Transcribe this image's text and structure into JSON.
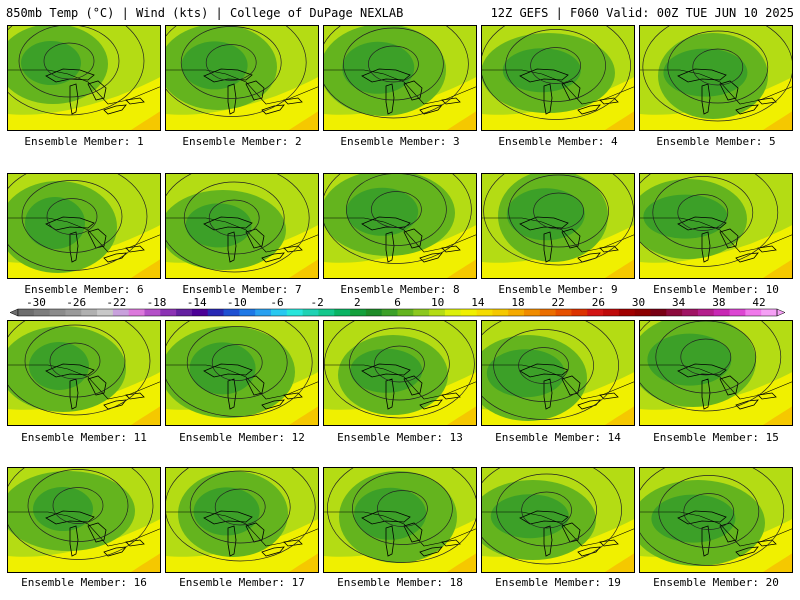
{
  "header": {
    "left": "850mb Temp (°C) | Wind (kts) | College of DuPage NEXLAB",
    "right": "12Z GEFS | F060 Valid: 00Z TUE JUN 10 2025"
  },
  "members": [
    "Ensemble Member: 1",
    "Ensemble Member: 2",
    "Ensemble Member: 3",
    "Ensemble Member: 4",
    "Ensemble Member: 5",
    "Ensemble Member: 6",
    "Ensemble Member: 7",
    "Ensemble Member: 8",
    "Ensemble Member: 9",
    "Ensemble Member: 10",
    "Ensemble Member: 11",
    "Ensemble Member: 12",
    "Ensemble Member: 13",
    "Ensemble Member: 14",
    "Ensemble Member: 15",
    "Ensemble Member: 16",
    "Ensemble Member: 17",
    "Ensemble Member: 18",
    "Ensemble Member: 19",
    "Ensemble Member: 20"
  ],
  "colorbar": {
    "tick_labels": [
      "-30",
      "-26",
      "-22",
      "-18",
      "-14",
      "-10",
      "-6",
      "-2",
      "2",
      "6",
      "10",
      "14",
      "18",
      "22",
      "26",
      "30",
      "34",
      "38",
      "42"
    ],
    "colors": [
      "#6e6e6e",
      "#7d7d7d",
      "#8c8c8c",
      "#9b9b9b",
      "#b0b0b0",
      "#c8c8c8",
      "#c8a0dc",
      "#dc78dc",
      "#b450c8",
      "#8c32b4",
      "#6420a0",
      "#4b0096",
      "#2828b4",
      "#1e50d2",
      "#1e78e6",
      "#28a0f0",
      "#28c8f0",
      "#28e6dc",
      "#20d2b4",
      "#14c88c",
      "#0ab464",
      "#14a03c",
      "#1e8c28",
      "#3ca028",
      "#64b41e",
      "#8cc81e",
      "#b4dc14",
      "#dcf00a",
      "#f0f000",
      "#f5dc00",
      "#f5c800",
      "#f5aa00",
      "#f08c00",
      "#eb6e00",
      "#e65000",
      "#dc3200",
      "#d21414",
      "#be0a0a",
      "#a00000",
      "#8c0000",
      "#780014",
      "#8c0a3c",
      "#a01464",
      "#b41e8c",
      "#c828b4",
      "#dc46d2",
      "#f078eb",
      "#f5a0f5"
    ]
  }
}
